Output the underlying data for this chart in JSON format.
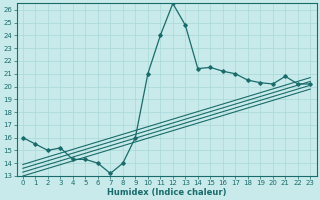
{
  "xlabel": "Humidex (Indice chaleur)",
  "bg_color": "#c8eaea",
  "line_color": "#1a6b6b",
  "grid_color": "#a8d8d8",
  "ylim": [
    13,
    26.5
  ],
  "xlim": [
    -0.5,
    23.5
  ],
  "yticks": [
    13,
    14,
    15,
    16,
    17,
    18,
    19,
    20,
    21,
    22,
    23,
    24,
    25,
    26
  ],
  "xticks": [
    0,
    1,
    2,
    3,
    4,
    5,
    6,
    7,
    8,
    9,
    10,
    11,
    12,
    13,
    14,
    15,
    16,
    17,
    18,
    19,
    20,
    21,
    22,
    23
  ],
  "main_line_x": [
    0,
    1,
    2,
    3,
    4,
    5,
    6,
    7,
    8,
    9,
    10,
    11,
    12,
    13,
    14,
    15,
    16,
    17,
    18,
    19,
    20,
    21,
    22,
    23
  ],
  "main_line_y": [
    16.0,
    15.5,
    15.0,
    15.2,
    14.3,
    14.3,
    14.0,
    13.2,
    14.0,
    16.0,
    21.0,
    24.0,
    26.5,
    24.8,
    21.4,
    21.5,
    21.2,
    21.0,
    20.5,
    20.3,
    20.2,
    20.8,
    20.2,
    20.2
  ],
  "ref_line_starts": [
    13.0,
    13.3,
    13.6,
    13.9
  ],
  "ref_line_ends": [
    19.8,
    20.1,
    20.4,
    20.7
  ],
  "xlabel_fontsize": 6,
  "tick_fontsize": 5
}
